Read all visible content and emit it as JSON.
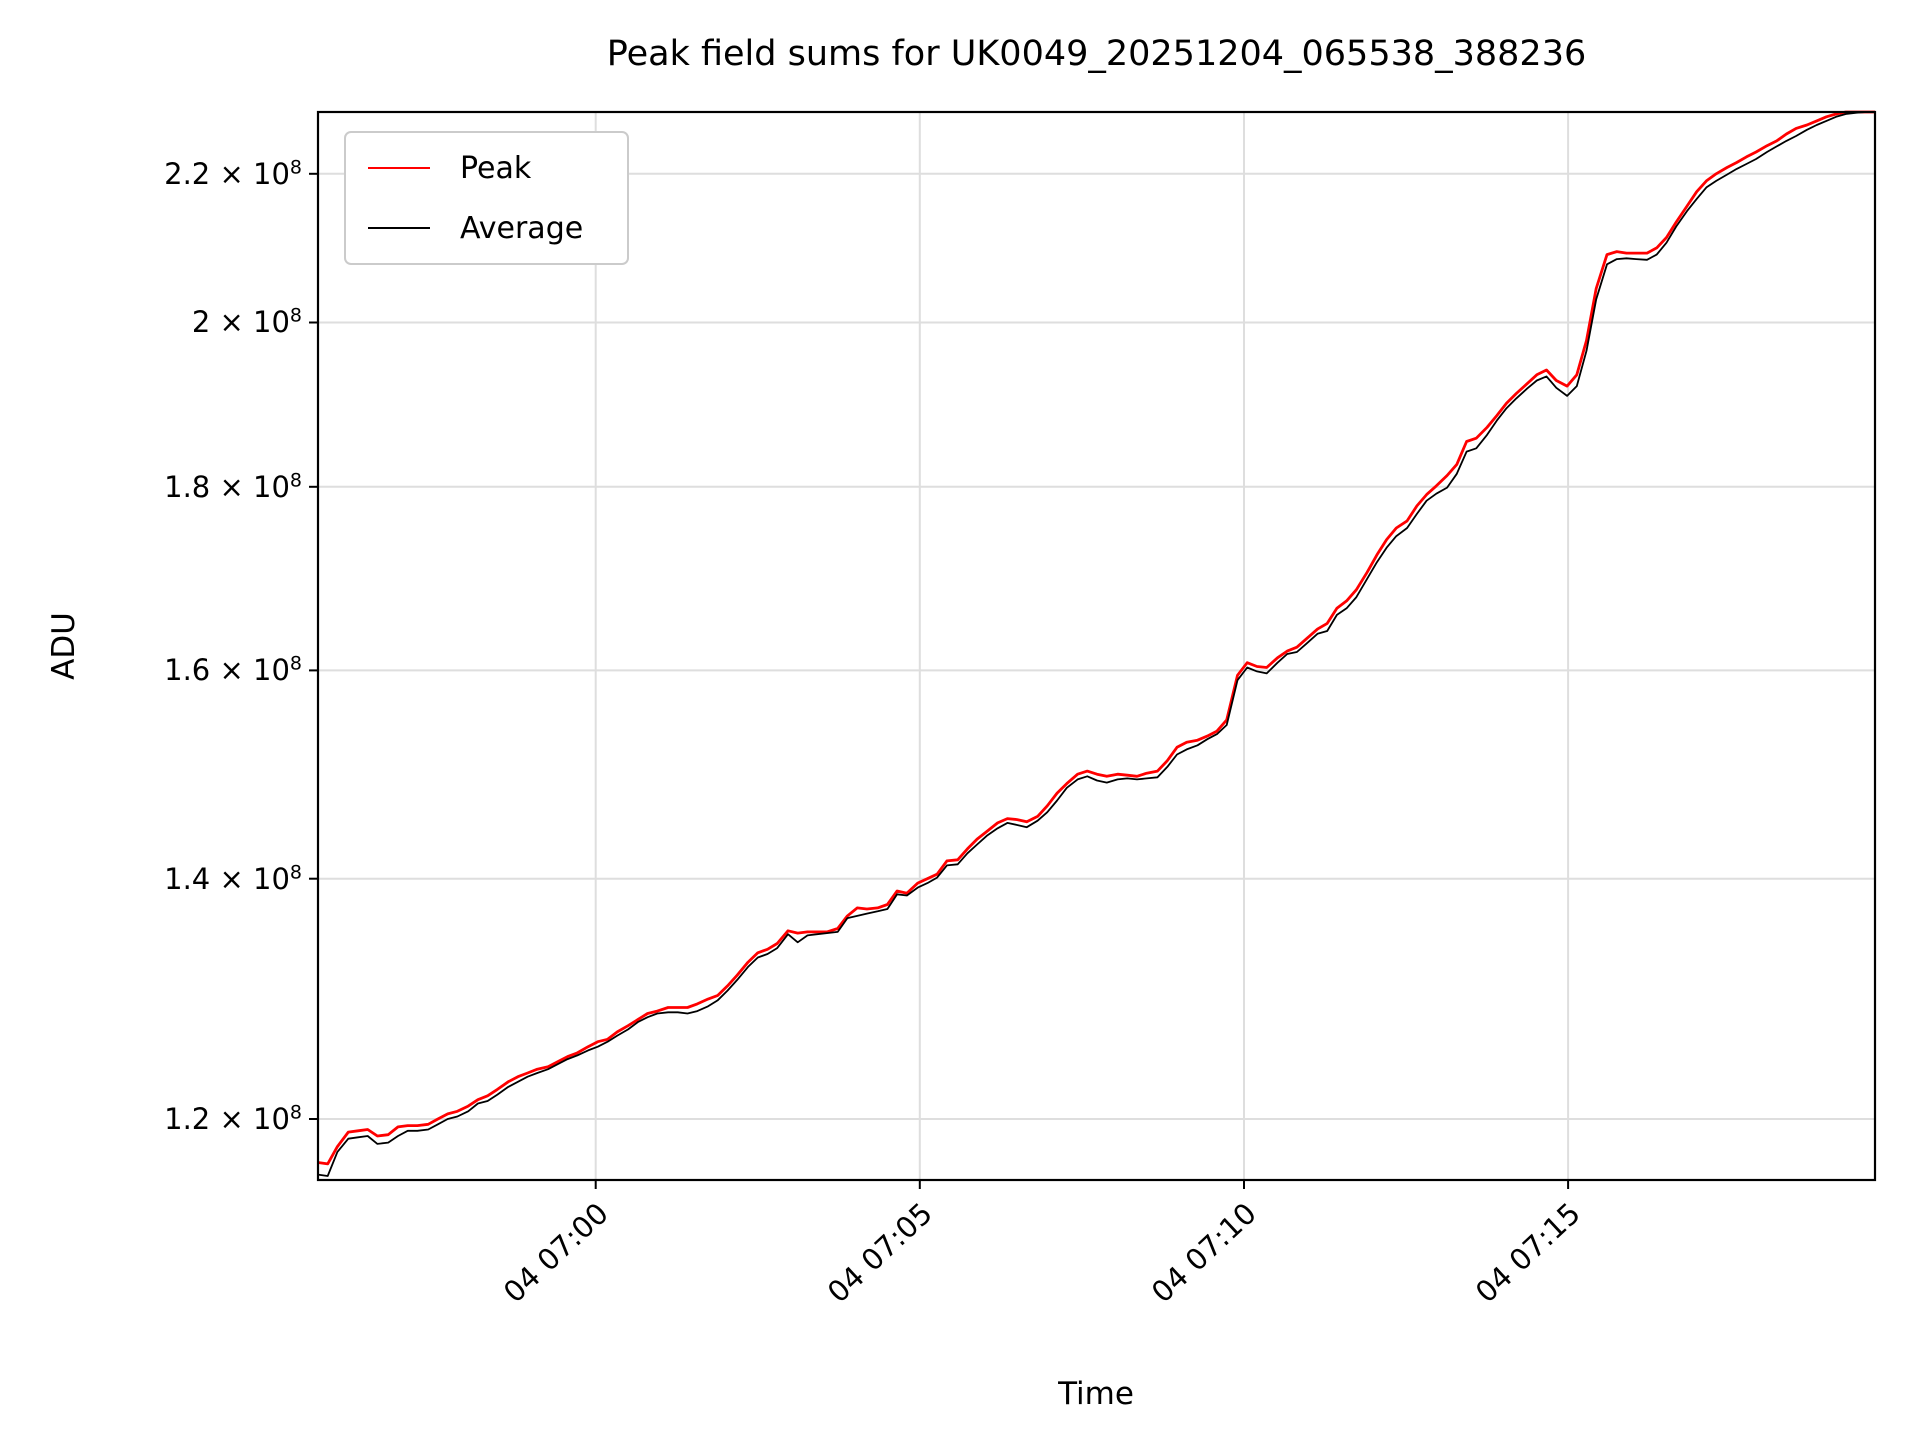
{
  "figure": {
    "background": "#ffffff",
    "grid_color": "#dedede",
    "spine_color": "#000000"
  },
  "chart_data": {
    "type": "line",
    "title": "Peak field sums for UK0049_20251204_065538_388236",
    "xlabel": "Time",
    "ylabel": "ADU",
    "yscale": "log",
    "grid": true,
    "legend_position": "upper left",
    "unit": "ADU x 10^8",
    "ylim": [
      1.154,
      2.289
    ],
    "t_range": [
      0,
      1441
    ],
    "x_ticks": [
      {
        "label": "04 07:00",
        "t": 257
      },
      {
        "label": "04 07:05",
        "t": 557
      },
      {
        "label": "04 07:10",
        "t": 857
      },
      {
        "label": "04 07:15",
        "t": 1157
      }
    ],
    "y_ticks": [
      {
        "m": "1.2",
        "sup": "8",
        "v": 1.2
      },
      {
        "m": "1.4",
        "sup": "8",
        "v": 1.4
      },
      {
        "m": "1.6",
        "sup": "8",
        "v": 1.6
      },
      {
        "m": "1.8",
        "sup": "8",
        "v": 1.8
      },
      {
        "m": "2",
        "sup": "8",
        "v": 2.0
      },
      {
        "m": "2.2",
        "sup": "8",
        "v": 2.2
      }
    ],
    "t": [
      0,
      9,
      18,
      28,
      37,
      46,
      55,
      65,
      74,
      83,
      92,
      102,
      111,
      120,
      129,
      139,
      148,
      157,
      166,
      176,
      185,
      194,
      203,
      213,
      222,
      231,
      240,
      250,
      259,
      268,
      277,
      287,
      296,
      305,
      314,
      324,
      333,
      342,
      351,
      361,
      370,
      379,
      388,
      398,
      407,
      416,
      425,
      435,
      444,
      453,
      462,
      471,
      481,
      490,
      499,
      508,
      518,
      527,
      536,
      545,
      555,
      564,
      573,
      582,
      592,
      601,
      610,
      619,
      629,
      638,
      647,
      656,
      666,
      675,
      684,
      693,
      703,
      712,
      721,
      730,
      740,
      749,
      758,
      767,
      777,
      786,
      795,
      804,
      814,
      823,
      832,
      841,
      851,
      860,
      869,
      878,
      888,
      897,
      906,
      915,
      925,
      934,
      943,
      952,
      961,
      971,
      980,
      989,
      998,
      1008,
      1017,
      1026,
      1035,
      1045,
      1054,
      1063,
      1072,
      1082,
      1091,
      1100,
      1109,
      1119,
      1128,
      1137,
      1146,
      1156,
      1165,
      1174,
      1183,
      1193,
      1202,
      1211,
      1220,
      1230,
      1239,
      1248,
      1257,
      1267,
      1276,
      1285,
      1294,
      1304,
      1313,
      1322,
      1331,
      1341,
      1350,
      1359,
      1368,
      1378,
      1387,
      1396,
      1405,
      1414,
      1424,
      1433,
      1441
    ],
    "series": [
      {
        "name": "Peak",
        "color": "#ff0000",
        "values": [
          1.167,
          1.166,
          1.179,
          1.19,
          1.191,
          1.192,
          1.187,
          1.188,
          1.194,
          1.195,
          1.195,
          1.196,
          1.2,
          1.204,
          1.206,
          1.21,
          1.215,
          1.218,
          1.223,
          1.229,
          1.233,
          1.236,
          1.239,
          1.241,
          1.245,
          1.249,
          1.252,
          1.257,
          1.261,
          1.263,
          1.269,
          1.274,
          1.279,
          1.284,
          1.286,
          1.289,
          1.289,
          1.289,
          1.292,
          1.296,
          1.299,
          1.307,
          1.316,
          1.327,
          1.335,
          1.338,
          1.343,
          1.354,
          1.352,
          1.353,
          1.353,
          1.353,
          1.356,
          1.367,
          1.374,
          1.373,
          1.374,
          1.377,
          1.389,
          1.387,
          1.396,
          1.4,
          1.404,
          1.416,
          1.417,
          1.427,
          1.436,
          1.443,
          1.451,
          1.455,
          1.454,
          1.452,
          1.457,
          1.467,
          1.479,
          1.488,
          1.497,
          1.5,
          1.497,
          1.495,
          1.497,
          1.496,
          1.495,
          1.498,
          1.5,
          1.51,
          1.523,
          1.528,
          1.53,
          1.534,
          1.539,
          1.55,
          1.595,
          1.608,
          1.604,
          1.603,
          1.613,
          1.62,
          1.624,
          1.633,
          1.643,
          1.649,
          1.665,
          1.673,
          1.685,
          1.704,
          1.723,
          1.74,
          1.753,
          1.761,
          1.778,
          1.791,
          1.801,
          1.813,
          1.826,
          1.853,
          1.857,
          1.87,
          1.884,
          1.899,
          1.911,
          1.923,
          1.934,
          1.94,
          1.927,
          1.92,
          1.934,
          1.977,
          2.044,
          2.089,
          2.093,
          2.091,
          2.091,
          2.091,
          2.098,
          2.112,
          2.133,
          2.155,
          2.175,
          2.19,
          2.2,
          2.209,
          2.216,
          2.224,
          2.231,
          2.24,
          2.247,
          2.257,
          2.265,
          2.27,
          2.276,
          2.282,
          2.286,
          2.289,
          2.289,
          2.289,
          2.289
        ]
      },
      {
        "name": "Average",
        "color": "#000000",
        "values": [
          1.158,
          1.157,
          1.175,
          1.185,
          1.186,
          1.187,
          1.181,
          1.182,
          1.187,
          1.191,
          1.191,
          1.192,
          1.196,
          1.2,
          1.202,
          1.206,
          1.212,
          1.214,
          1.219,
          1.225,
          1.229,
          1.233,
          1.236,
          1.239,
          1.243,
          1.247,
          1.25,
          1.254,
          1.257,
          1.261,
          1.266,
          1.271,
          1.277,
          1.281,
          1.284,
          1.285,
          1.285,
          1.284,
          1.286,
          1.29,
          1.295,
          1.303,
          1.312,
          1.323,
          1.331,
          1.334,
          1.339,
          1.351,
          1.344,
          1.35,
          1.351,
          1.352,
          1.353,
          1.365,
          1.367,
          1.369,
          1.371,
          1.373,
          1.386,
          1.385,
          1.392,
          1.396,
          1.401,
          1.412,
          1.413,
          1.423,
          1.431,
          1.439,
          1.446,
          1.451,
          1.449,
          1.447,
          1.453,
          1.461,
          1.472,
          1.484,
          1.492,
          1.495,
          1.491,
          1.489,
          1.492,
          1.493,
          1.492,
          1.493,
          1.494,
          1.504,
          1.516,
          1.521,
          1.525,
          1.531,
          1.536,
          1.545,
          1.59,
          1.603,
          1.599,
          1.597,
          1.608,
          1.617,
          1.619,
          1.628,
          1.638,
          1.641,
          1.658,
          1.665,
          1.677,
          1.697,
          1.715,
          1.731,
          1.744,
          1.753,
          1.769,
          1.784,
          1.792,
          1.799,
          1.815,
          1.841,
          1.845,
          1.861,
          1.878,
          1.893,
          1.905,
          1.917,
          1.927,
          1.932,
          1.918,
          1.908,
          1.92,
          1.964,
          2.03,
          2.076,
          2.083,
          2.084,
          2.083,
          2.082,
          2.089,
          2.105,
          2.127,
          2.148,
          2.165,
          2.181,
          2.19,
          2.199,
          2.207,
          2.214,
          2.221,
          2.231,
          2.239,
          2.247,
          2.254,
          2.263,
          2.27,
          2.276,
          2.282,
          2.286,
          2.288,
          2.289,
          2.289
        ]
      }
    ]
  }
}
